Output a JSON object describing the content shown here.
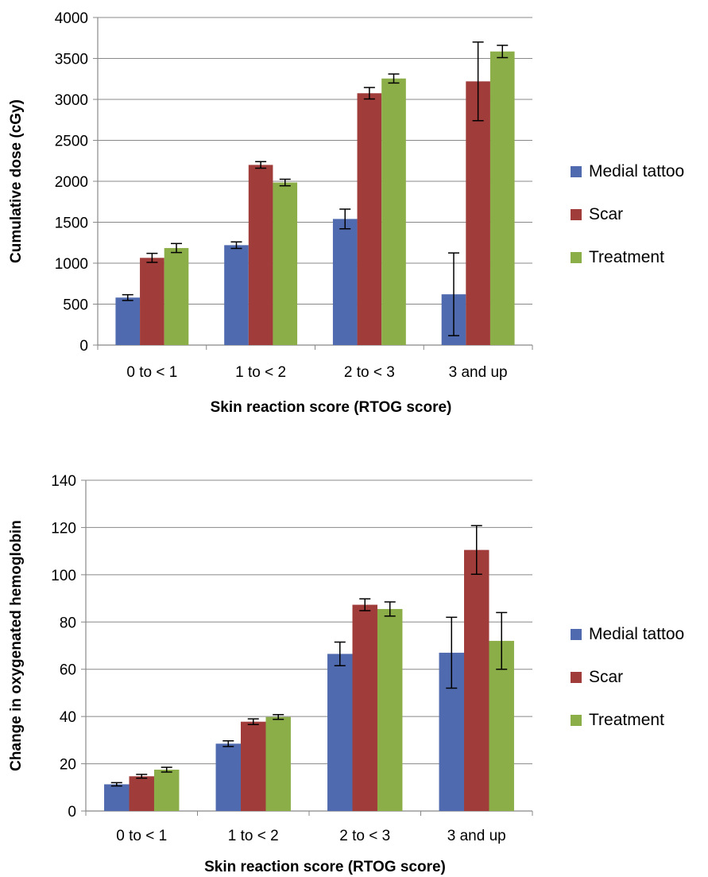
{
  "chart_data": [
    {
      "type": "bar",
      "categories": [
        "0 to < 1",
        "1 to < 2",
        "2 to < 3",
        "3 and up"
      ],
      "xlabel": "Skin reaction score (RTOG score)",
      "ylabel": "Cumulative dose (cGy)",
      "ylim": [
        0,
        4000
      ],
      "yticks": [
        0,
        500,
        1000,
        1500,
        2000,
        2500,
        3000,
        3500,
        4000
      ],
      "grid": true,
      "legend_position": "right",
      "series": [
        {
          "name": "Medial tattoo",
          "color": "#4F6AAE",
          "values": [
            580,
            1220,
            1540,
            620
          ],
          "errors": [
            35,
            40,
            120,
            505
          ]
        },
        {
          "name": "Scar",
          "color": "#A03C3A",
          "values": [
            1065,
            2200,
            3075,
            3220
          ],
          "errors": [
            55,
            40,
            70,
            480
          ]
        },
        {
          "name": "Treatment",
          "color": "#8CAE48",
          "values": [
            1185,
            1985,
            3255,
            3585
          ],
          "errors": [
            55,
            40,
            55,
            75
          ]
        }
      ]
    },
    {
      "type": "bar",
      "categories": [
        "0 to < 1",
        "1 to < 2",
        "2 to < 3",
        "3 and up"
      ],
      "xlabel": "Skin reaction score (RTOG score)",
      "ylabel": "Change in oxygenated hemoglobin",
      "ylim": [
        0,
        140
      ],
      "yticks": [
        0,
        20,
        40,
        60,
        80,
        100,
        120,
        140
      ],
      "grid": true,
      "legend_position": "right",
      "series": [
        {
          "name": "Medial tattoo",
          "color": "#4F6AAE",
          "values": [
            11.3,
            28.5,
            66.5,
            67
          ],
          "errors": [
            0.7,
            1.2,
            5,
            15
          ]
        },
        {
          "name": "Scar",
          "color": "#A03C3A",
          "values": [
            14.7,
            37.8,
            87.3,
            110.5
          ],
          "errors": [
            0.8,
            1.2,
            2.5,
            10.3
          ]
        },
        {
          "name": "Treatment",
          "color": "#8CAE48",
          "values": [
            17.5,
            39.8,
            85.5,
            72
          ],
          "errors": [
            1.0,
            1.0,
            3.0,
            12
          ]
        }
      ]
    }
  ]
}
